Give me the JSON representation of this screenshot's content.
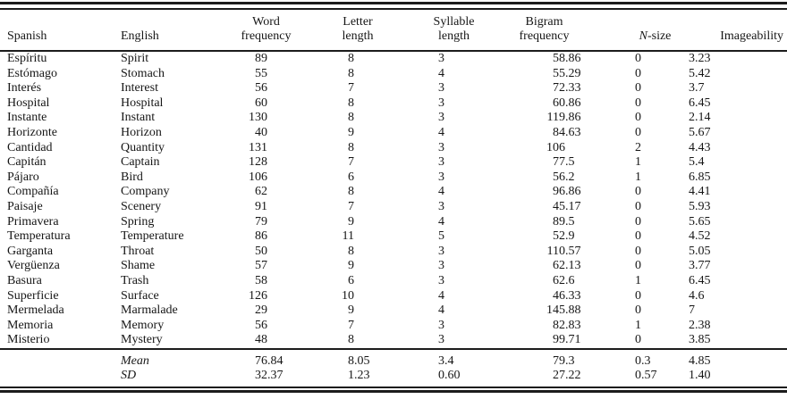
{
  "table": {
    "headers": {
      "spanish": "Spanish",
      "english": "English",
      "word_frequency": [
        "Word",
        "frequency"
      ],
      "letter_length": [
        "Letter",
        "length"
      ],
      "syllable_length": [
        "Syllable",
        "length"
      ],
      "bigram_frequency": [
        "Bigram",
        "frequency"
      ],
      "n_size_italic": "N",
      "n_size_rest": "-size",
      "imageability": "Imageability"
    },
    "rows": [
      {
        "spanish": "Espíritu",
        "english": "Spirit",
        "word_frequency": "89",
        "letter_length": "8",
        "syllable_length": "3",
        "bigram_frequency": "58.86",
        "n_size": "0",
        "imageability": "3.23"
      },
      {
        "spanish": "Estómago",
        "english": "Stomach",
        "word_frequency": "55",
        "letter_length": "8",
        "syllable_length": "4",
        "bigram_frequency": "55.29",
        "n_size": "0",
        "imageability": "5.42"
      },
      {
        "spanish": "Interés",
        "english": "Interest",
        "word_frequency": "56",
        "letter_length": "7",
        "syllable_length": "3",
        "bigram_frequency": "72.33",
        "n_size": "0",
        "imageability": "3.7"
      },
      {
        "spanish": "Hospital",
        "english": "Hospital",
        "word_frequency": "60",
        "letter_length": "8",
        "syllable_length": "3",
        "bigram_frequency": "60.86",
        "n_size": "0",
        "imageability": "6.45"
      },
      {
        "spanish": "Instante",
        "english": "Instant",
        "word_frequency": "130",
        "letter_length": "8",
        "syllable_length": "3",
        "bigram_frequency": "119.86",
        "n_size": "0",
        "imageability": "2.14"
      },
      {
        "spanish": "Horizonte",
        "english": "Horizon",
        "word_frequency": "40",
        "letter_length": "9",
        "syllable_length": "4",
        "bigram_frequency": "84.63",
        "n_size": "0",
        "imageability": "5.67"
      },
      {
        "spanish": "Cantidad",
        "english": "Quantity",
        "word_frequency": "131",
        "letter_length": "8",
        "syllable_length": "3",
        "bigram_frequency": "106",
        "n_size": "2",
        "imageability": "4.43"
      },
      {
        "spanish": "Capitán",
        "english": "Captain",
        "word_frequency": "128",
        "letter_length": "7",
        "syllable_length": "3",
        "bigram_frequency": "77.5",
        "n_size": "1",
        "imageability": "5.4"
      },
      {
        "spanish": "Pájaro",
        "english": "Bird",
        "word_frequency": "106",
        "letter_length": "6",
        "syllable_length": "3",
        "bigram_frequency": "56.2",
        "n_size": "1",
        "imageability": "6.85"
      },
      {
        "spanish": "Compañía",
        "english": "Company",
        "word_frequency": "62",
        "letter_length": "8",
        "syllable_length": "4",
        "bigram_frequency": "96.86",
        "n_size": "0",
        "imageability": "4.41"
      },
      {
        "spanish": "Paisaje",
        "english": "Scenery",
        "word_frequency": "91",
        "letter_length": "7",
        "syllable_length": "3",
        "bigram_frequency": "45.17",
        "n_size": "0",
        "imageability": "5.93"
      },
      {
        "spanish": "Primavera",
        "english": "Spring",
        "word_frequency": "79",
        "letter_length": "9",
        "syllable_length": "4",
        "bigram_frequency": "89.5",
        "n_size": "0",
        "imageability": "5.65"
      },
      {
        "spanish": "Temperatura",
        "english": "Temperature",
        "word_frequency": "86",
        "letter_length": "11",
        "syllable_length": "5",
        "bigram_frequency": "52.9",
        "n_size": "0",
        "imageability": "4.52"
      },
      {
        "spanish": "Garganta",
        "english": "Throat",
        "word_frequency": "50",
        "letter_length": "8",
        "syllable_length": "3",
        "bigram_frequency": "110.57",
        "n_size": "0",
        "imageability": "5.05"
      },
      {
        "spanish": "Vergüenza",
        "english": "Shame",
        "word_frequency": "57",
        "letter_length": "9",
        "syllable_length": "3",
        "bigram_frequency": "62.13",
        "n_size": "0",
        "imageability": "3.77"
      },
      {
        "spanish": "Basura",
        "english": "Trash",
        "word_frequency": "58",
        "letter_length": "6",
        "syllable_length": "3",
        "bigram_frequency": "62.6",
        "n_size": "1",
        "imageability": "6.45"
      },
      {
        "spanish": "Superficie",
        "english": "Surface",
        "word_frequency": "126",
        "letter_length": "10",
        "syllable_length": "4",
        "bigram_frequency": "46.33",
        "n_size": "0",
        "imageability": "4.6"
      },
      {
        "spanish": "Mermelada",
        "english": "Marmalade",
        "word_frequency": "29",
        "letter_length": "9",
        "syllable_length": "4",
        "bigram_frequency": "145.88",
        "n_size": "0",
        "imageability": "7"
      },
      {
        "spanish": "Memoria",
        "english": "Memory",
        "word_frequency": "56",
        "letter_length": "7",
        "syllable_length": "3",
        "bigram_frequency": "82.83",
        "n_size": "1",
        "imageability": "2.38"
      },
      {
        "spanish": "Misterio",
        "english": "Mystery",
        "word_frequency": "48",
        "letter_length": "8",
        "syllable_length": "3",
        "bigram_frequency": "99.71",
        "n_size": "0",
        "imageability": "3.85"
      }
    ],
    "summary_rows": [
      {
        "label": "Mean",
        "word_frequency": "76.84",
        "letter_length": "8.05",
        "syllable_length": "3.4",
        "bigram_frequency": "79.3",
        "n_size": "0.3",
        "imageability": "4.85"
      },
      {
        "label": "SD",
        "word_frequency": "32.37",
        "letter_length": "1.23",
        "syllable_length": "0.60",
        "bigram_frequency": "27.22",
        "n_size": "0.57",
        "imageability": "1.40"
      }
    ]
  }
}
